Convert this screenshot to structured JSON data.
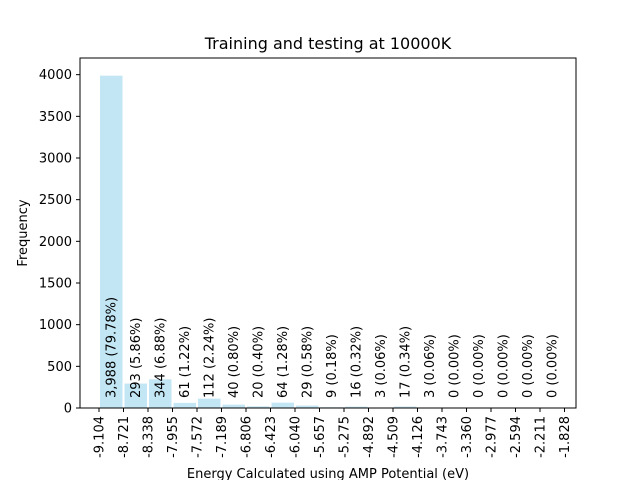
{
  "chart_data": {
    "type": "bar",
    "title": "Training and testing at 10000K",
    "xlabel": "Energy Calculated using AMP Potential (eV)",
    "ylabel": "Frequency",
    "ylim": [
      0,
      4200
    ],
    "yticks": [
      0,
      500,
      1000,
      1500,
      2000,
      2500,
      3000,
      3500,
      4000
    ],
    "ytick_labels": [
      "0",
      "500",
      "1000",
      "1500",
      "2000",
      "2500",
      "3000",
      "3500",
      "4000"
    ],
    "xticks": [
      "-9.104",
      "-8.721",
      "-8.338",
      "-7.955",
      "-7.572",
      "-7.189",
      "-6.806",
      "-6.423",
      "-6.040",
      "-5.657",
      "-5.275",
      "-4.892",
      "-4.509",
      "-4.126",
      "-3.743",
      "-3.360",
      "-2.977",
      "-2.594",
      "-2.211",
      "-1.828"
    ],
    "values": [
      3988,
      293,
      344,
      61,
      112,
      40,
      20,
      64,
      29,
      9,
      16,
      3,
      17,
      3,
      0,
      0,
      0,
      0,
      0
    ],
    "data_labels": [
      "3,988  (79.78%)",
      "293  (5.86%)",
      "344  (6.88%)",
      "61  (1.22%)",
      "112  (2.24%)",
      "40  (0.80%)",
      "20  (0.40%)",
      "64  (1.28%)",
      "29  (0.58%)",
      "9  (0.18%)",
      "16  (0.32%)",
      "3  (0.06%)",
      "17  (0.34%)",
      "3  (0.06%)",
      "0  (0.00%)",
      "0  (0.00%)",
      "0  (0.00%)",
      "0  (0.00%)",
      "0  (0.00%)"
    ],
    "bar_color": "#c3e6f4",
    "grid": false,
    "legend": "none"
  }
}
